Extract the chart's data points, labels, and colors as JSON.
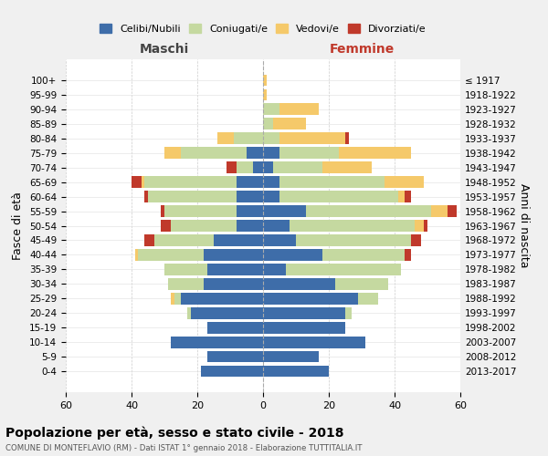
{
  "age_groups": [
    "0-4",
    "5-9",
    "10-14",
    "15-19",
    "20-24",
    "25-29",
    "30-34",
    "35-39",
    "40-44",
    "45-49",
    "50-54",
    "55-59",
    "60-64",
    "65-69",
    "70-74",
    "75-79",
    "80-84",
    "85-89",
    "90-94",
    "95-99",
    "100+"
  ],
  "birth_years": [
    "2013-2017",
    "2008-2012",
    "2003-2007",
    "1998-2002",
    "1993-1997",
    "1988-1992",
    "1983-1987",
    "1978-1982",
    "1973-1977",
    "1968-1972",
    "1963-1967",
    "1958-1962",
    "1953-1957",
    "1948-1952",
    "1943-1947",
    "1938-1942",
    "1933-1937",
    "1928-1932",
    "1923-1927",
    "1918-1922",
    "≤ 1917"
  ],
  "colors": {
    "celibe": "#3E6DA9",
    "coniugato": "#C5D9A0",
    "vedovo": "#F5C96A",
    "divorziato": "#C0392B"
  },
  "males": {
    "celibe": [
      19,
      17,
      28,
      17,
      22,
      25,
      18,
      17,
      18,
      15,
      8,
      8,
      8,
      8,
      3,
      5,
      0,
      0,
      0,
      0,
      0
    ],
    "coniugato": [
      0,
      0,
      0,
      0,
      1,
      2,
      11,
      13,
      20,
      18,
      20,
      22,
      27,
      28,
      5,
      20,
      9,
      0,
      0,
      0,
      0
    ],
    "vedovo": [
      0,
      0,
      0,
      0,
      0,
      1,
      0,
      0,
      1,
      0,
      0,
      0,
      0,
      1,
      0,
      5,
      5,
      0,
      0,
      0,
      0
    ],
    "divorziato": [
      0,
      0,
      0,
      0,
      0,
      0,
      0,
      0,
      0,
      3,
      3,
      1,
      1,
      3,
      3,
      0,
      0,
      0,
      0,
      0,
      0
    ]
  },
  "females": {
    "celibe": [
      20,
      17,
      31,
      25,
      25,
      29,
      22,
      7,
      18,
      10,
      8,
      13,
      5,
      5,
      3,
      5,
      0,
      0,
      0,
      0,
      0
    ],
    "coniugato": [
      0,
      0,
      0,
      0,
      2,
      6,
      16,
      35,
      25,
      35,
      38,
      38,
      36,
      32,
      15,
      18,
      5,
      3,
      5,
      0,
      0
    ],
    "vedovo": [
      0,
      0,
      0,
      0,
      0,
      0,
      0,
      0,
      0,
      0,
      3,
      5,
      2,
      12,
      15,
      22,
      20,
      10,
      12,
      1,
      1
    ],
    "divorziato": [
      0,
      0,
      0,
      0,
      0,
      0,
      0,
      0,
      2,
      3,
      1,
      3,
      2,
      0,
      0,
      0,
      1,
      0,
      0,
      0,
      0
    ]
  },
  "xlim": 60,
  "title": "Popolazione per età, sesso e stato civile - 2018",
  "subtitle": "COMUNE DI MONTEFLAVIO (RM) - Dati ISTAT 1° gennaio 2018 - Elaborazione TUTTITALIA.IT",
  "xlabel_left": "Maschi",
  "xlabel_right": "Femmine",
  "ylabel": "Fasce di età",
  "ylabel_right": "Anni di nascita",
  "legend_labels": [
    "Celibi/Nubili",
    "Coniugati/e",
    "Vedovi/e",
    "Divorziati/e"
  ],
  "bg_color": "#f0f0f0",
  "plot_bg": "#ffffff"
}
